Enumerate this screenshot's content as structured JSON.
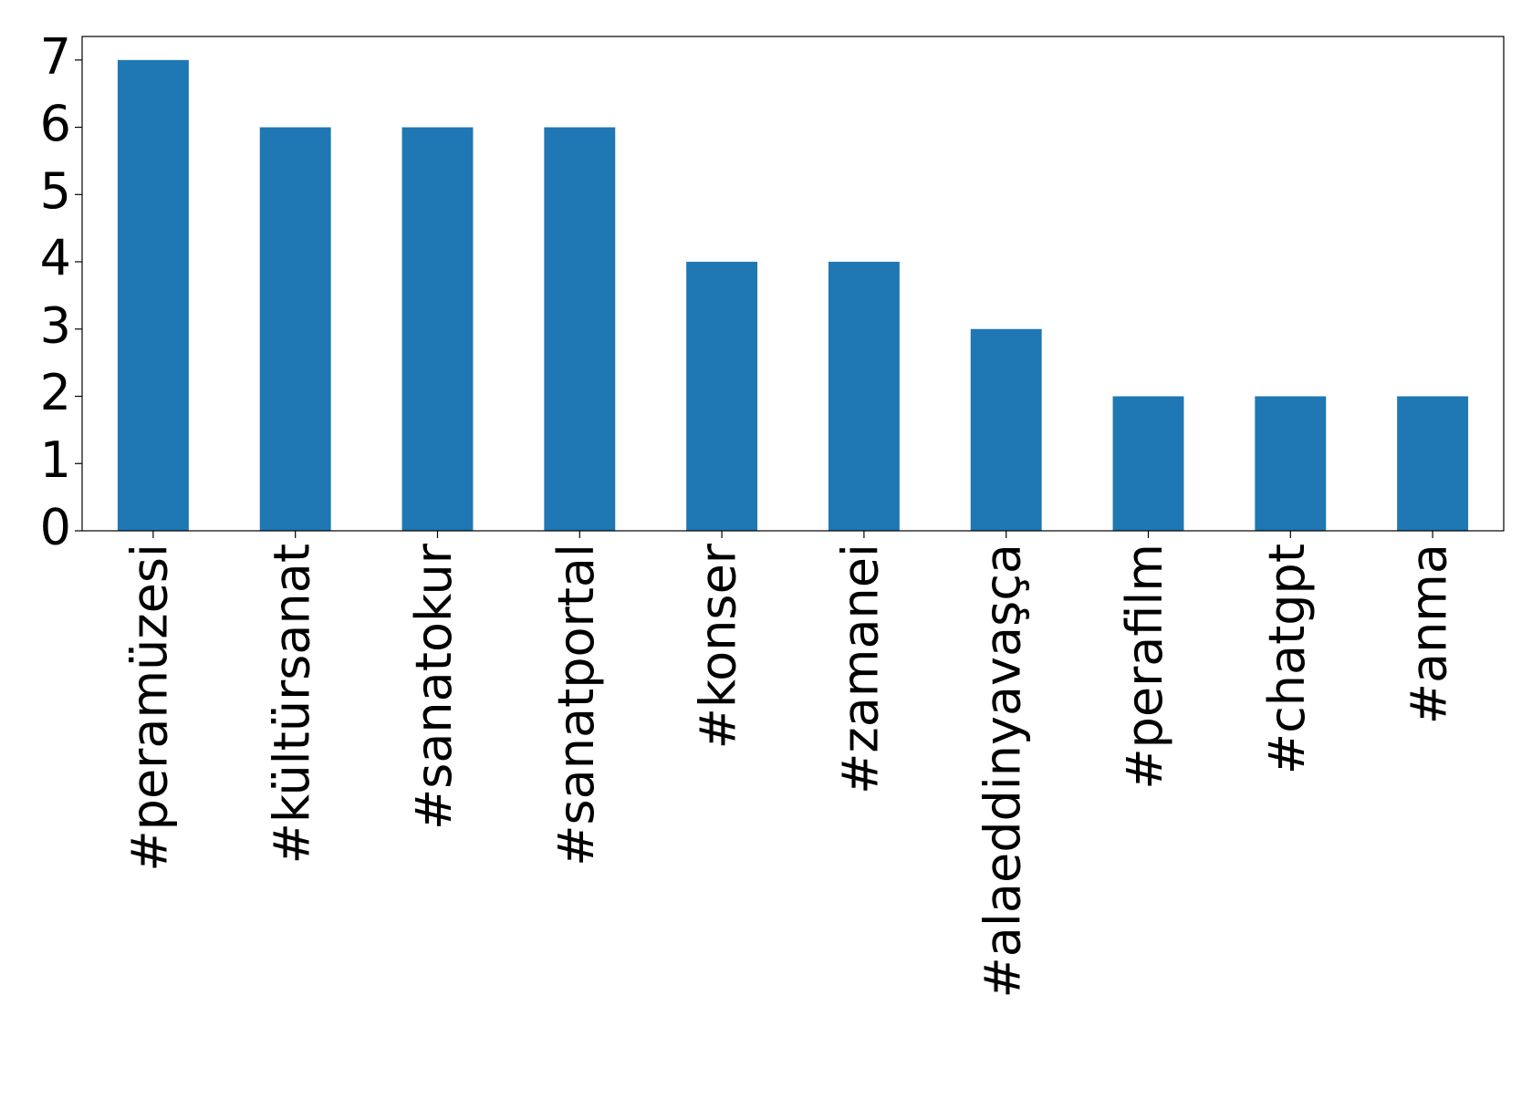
{
  "chart_data": {
    "type": "bar",
    "categories": [
      "#peramüzesi",
      "#kültürsanat",
      "#sanatokur",
      "#sanatportal",
      "#konser",
      "#zamanei",
      "#alaeddinyavaşça",
      "#perafilm",
      "#chatgpt",
      "#anma"
    ],
    "values": [
      7,
      6,
      6,
      6,
      4,
      4,
      3,
      2,
      2,
      2
    ],
    "color": "#1f77b4",
    "ylim": [
      0,
      7.35
    ],
    "yticks": [
      0,
      1,
      2,
      3,
      4,
      5,
      6,
      7
    ],
    "grid": false
  }
}
